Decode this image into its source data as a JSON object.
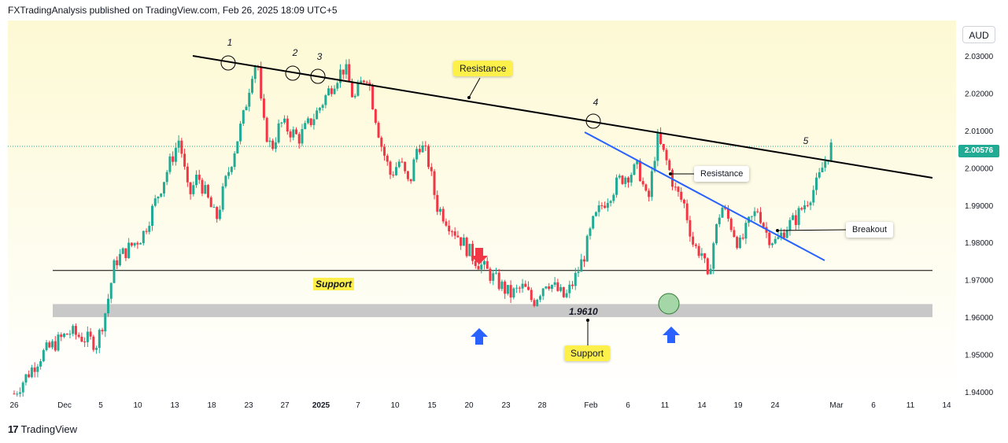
{
  "header": {
    "publisher": "FXTradingAnalysis published on TradingView.com, Feb 26, 2025 18:09 UTC+5"
  },
  "toolbar": {
    "currency": "AUD"
  },
  "footer": {
    "brand_mark": "17",
    "brand_name": "TradingView"
  },
  "colors": {
    "up": "#22ab94",
    "down": "#f23645",
    "bg_top": "#fdf9d4",
    "bg_bottom": "#ffffff",
    "trendline": "#000000",
    "blue_line": "#2962ff",
    "zone": "#c8c8c8",
    "arrow_down": "#f23645",
    "arrow_up": "#2962ff",
    "label_yellow": "#fdf04a",
    "circle_green": "#a5d6a7"
  },
  "annotations": {
    "resistance_top": "Resistance",
    "resistance_blue": "Resistance",
    "breakout": "Breakout",
    "support_flat": "Support",
    "support_zone": "Support",
    "zone_level": "1.9610",
    "touch_points": [
      "1",
      "2",
      "3",
      "4",
      "5"
    ]
  },
  "chart_data": {
    "type": "candlestick",
    "symbol_quote": "AUD",
    "last_price": "2.00576",
    "y_range": [
      1.9385,
      2.0395
    ],
    "y_ticks": [
      "2.03000",
      "2.02000",
      "2.01000",
      "2.00000",
      "1.99000",
      "1.98000",
      "1.97000",
      "1.96000",
      "1.95000",
      "1.94000"
    ],
    "x_ticks": [
      "26",
      "Dec",
      "5",
      "10",
      "13",
      "18",
      "23",
      "27",
      "2025",
      "7",
      "10",
      "15",
      "20",
      "23",
      "28",
      "Feb",
      "6",
      "11",
      "14",
      "19",
      "24",
      "Mar",
      "6",
      "11",
      "14"
    ],
    "support_level": 1.9725,
    "support_zone": [
      1.96,
      1.9635
    ],
    "resistance_line": {
      "from": [
        0,
        2.0301
      ],
      "to": [
        1,
        1.9987
      ]
    },
    "blue_resistance_line": {
      "from": [
        0.585,
        2.0108
      ],
      "to": [
        0.89,
        1.9762
      ]
    },
    "path_points": [
      [
        0.0,
        1.9395
      ],
      [
        0.03,
        1.95
      ],
      [
        0.06,
        1.956
      ],
      [
        0.09,
        1.953
      ],
      [
        0.1,
        1.962
      ],
      [
        0.11,
        1.975
      ],
      [
        0.14,
        1.982
      ],
      [
        0.16,
        1.995
      ],
      [
        0.18,
        2.008
      ],
      [
        0.19,
        1.992
      ],
      [
        0.2,
        1.998
      ],
      [
        0.22,
        1.986
      ],
      [
        0.23,
        1.996
      ],
      [
        0.25,
        2.014
      ],
      [
        0.26,
        2.027
      ],
      [
        0.265,
        2.029
      ],
      [
        0.27,
        2.013
      ],
      [
        0.28,
        2.005
      ],
      [
        0.29,
        2.012
      ],
      [
        0.31,
        2.008
      ],
      [
        0.33,
        2.015
      ],
      [
        0.35,
        2.024
      ],
      [
        0.36,
        2.027
      ],
      [
        0.37,
        2.018
      ],
      [
        0.38,
        2.024
      ],
      [
        0.385,
        2.025
      ],
      [
        0.39,
        2.018
      ],
      [
        0.4,
        2.006
      ],
      [
        0.41,
        1.998
      ],
      [
        0.42,
        2.002
      ],
      [
        0.43,
        1.995
      ],
      [
        0.44,
        2.007
      ],
      [
        0.45,
        2.003
      ],
      [
        0.46,
        1.99
      ],
      [
        0.48,
        1.983
      ],
      [
        0.5,
        1.976
      ],
      [
        0.52,
        1.971
      ],
      [
        0.54,
        1.966
      ],
      [
        0.555,
        1.968
      ],
      [
        0.565,
        1.964
      ],
      [
        0.58,
        1.97
      ],
      [
        0.6,
        1.965
      ],
      [
        0.61,
        1.97
      ],
      [
        0.62,
        1.976
      ],
      [
        0.63,
        1.985
      ],
      [
        0.64,
        1.99
      ],
      [
        0.66,
        1.997
      ],
      [
        0.68,
        2.0
      ],
      [
        0.69,
        1.99
      ],
      [
        0.7,
        2.008
      ],
      [
        0.71,
        2.002
      ],
      [
        0.72,
        1.994
      ],
      [
        0.73,
        1.99
      ],
      [
        0.74,
        1.979
      ],
      [
        0.75,
        1.977
      ],
      [
        0.755,
        1.969
      ],
      [
        0.76,
        1.978
      ],
      [
        0.77,
        1.99
      ],
      [
        0.78,
        1.985
      ],
      [
        0.79,
        1.979
      ],
      [
        0.8,
        1.985
      ],
      [
        0.81,
        1.989
      ],
      [
        0.82,
        1.982
      ],
      [
        0.83,
        1.98
      ],
      [
        0.84,
        1.984
      ],
      [
        0.85,
        1.986
      ],
      [
        0.86,
        1.99
      ],
      [
        0.875,
        1.996
      ],
      [
        0.88,
        2.0
      ],
      [
        0.885,
        2.003
      ],
      [
        0.89,
        2.0058
      ]
    ]
  }
}
